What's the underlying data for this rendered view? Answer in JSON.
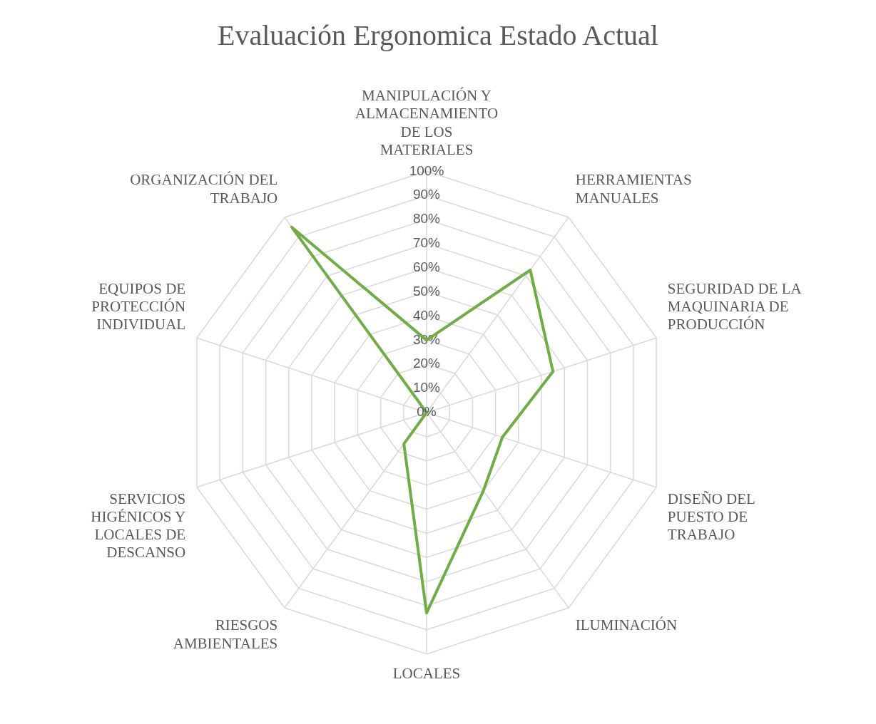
{
  "chart_data": {
    "type": "radar",
    "title": "Evaluación Ergonomica Estado Actual",
    "categories": [
      "MANIPULACIÓN Y ALMACENAMIENTO DE LOS MATERIALES",
      "HERRAMIENTAS MANUALES",
      "SEGURIDAD DE LA MAQUINARIA DE PRODUCCIÓN",
      "DISEÑO DEL PUESTO DE TRABAJO",
      "ILUMINACIÓN",
      "LOCALES",
      "RIESGOS AMBIENTALES",
      "SERVICIOS HIGÉNICOS Y LOCALES DE DESCANSO",
      "EQUIPOS DE PROTECCIÓN INDIVIDUAL",
      "ORGANIZACIÓN DEL TRABAJO"
    ],
    "series": [
      {
        "color": "#70ad47",
        "values": [
          30,
          73,
          55,
          33,
          40,
          83,
          16,
          0,
          0,
          95
        ]
      }
    ],
    "ylim": [
      0,
      100
    ],
    "yticks": [
      {
        "value": 0,
        "label": "0%"
      },
      {
        "value": 10,
        "label": "10%"
      },
      {
        "value": 20,
        "label": "20%"
      },
      {
        "value": 30,
        "label": "30%"
      },
      {
        "value": 40,
        "label": "40%"
      },
      {
        "value": 50,
        "label": "50%"
      },
      {
        "value": 60,
        "label": "60%"
      },
      {
        "value": 70,
        "label": "70%"
      },
      {
        "value": 80,
        "label": "80%"
      },
      {
        "value": 90,
        "label": "90%"
      },
      {
        "value": 100,
        "label": "100%"
      }
    ],
    "grid": true,
    "legend": false,
    "marker": "none",
    "line_style": "solid"
  }
}
